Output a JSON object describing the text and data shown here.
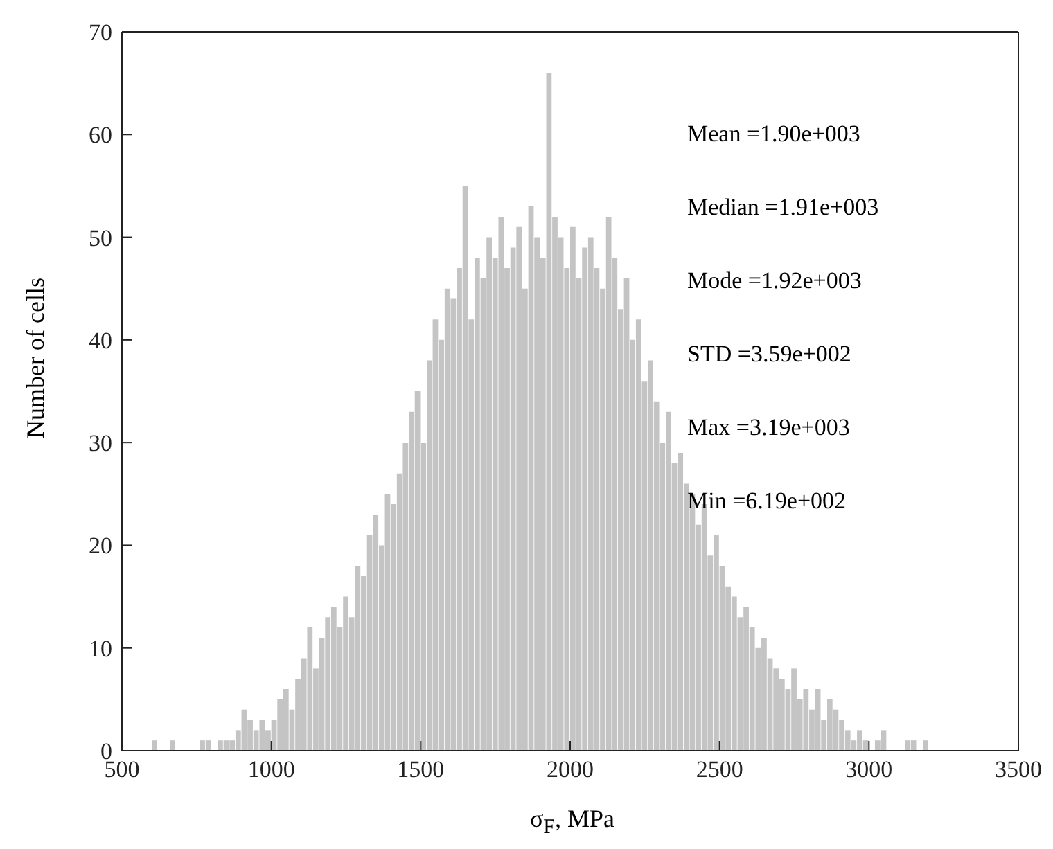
{
  "chart_data": {
    "type": "histogram",
    "xlabel": "σ$_{F}$, MPa",
    "ylabel": "Number of cells",
    "bins": [
      600,
      620,
      640,
      660,
      680,
      700,
      720,
      740,
      760,
      780,
      800,
      820,
      840,
      860,
      880,
      900,
      920,
      940,
      960,
      980,
      1000,
      1020,
      1040,
      1060,
      1080,
      1100,
      1120,
      1140,
      1160,
      1180,
      1200,
      1220,
      1240,
      1260,
      1280,
      1300,
      1320,
      1340,
      1360,
      1380,
      1400,
      1420,
      1440,
      1460,
      1480,
      1500,
      1520,
      1540,
      1560,
      1580,
      1600,
      1620,
      1640,
      1660,
      1680,
      1700,
      1720,
      1740,
      1760,
      1780,
      1800,
      1820,
      1840,
      1860,
      1880,
      1900,
      1920,
      1940,
      1960,
      1980,
      2000,
      2020,
      2040,
      2060,
      2080,
      2100,
      2120,
      2140,
      2160,
      2180,
      2200,
      2220,
      2240,
      2260,
      2280,
      2300,
      2320,
      2340,
      2360,
      2380,
      2400,
      2420,
      2440,
      2460,
      2480,
      2500,
      2520,
      2540,
      2560,
      2580,
      2600,
      2620,
      2640,
      2660,
      2680,
      2700,
      2720,
      2740,
      2760,
      2780,
      2800,
      2820,
      2840,
      2860,
      2880,
      2900,
      2920,
      2940,
      2960,
      2980,
      3000,
      3020,
      3040,
      3060,
      3080,
      3100,
      3120,
      3140,
      3160,
      3180,
      3200
    ],
    "values": [
      1,
      0,
      0,
      1,
      0,
      0,
      0,
      0,
      1,
      1,
      0,
      1,
      1,
      1,
      2,
      4,
      3,
      2,
      3,
      2,
      3,
      5,
      6,
      4,
      7,
      9,
      12,
      8,
      11,
      13,
      14,
      12,
      15,
      13,
      18,
      17,
      21,
      23,
      20,
      25,
      24,
      27,
      30,
      33,
      35,
      30,
      38,
      42,
      40,
      45,
      44,
      47,
      55,
      42,
      48,
      46,
      50,
      48,
      52,
      47,
      49,
      51,
      45,
      53,
      50,
      48,
      66,
      52,
      50,
      47,
      51,
      46,
      49,
      50,
      47,
      45,
      52,
      48,
      43,
      46,
      40,
      42,
      36,
      38,
      34,
      30,
      33,
      28,
      29,
      26,
      25,
      22,
      24,
      19,
      21,
      18,
      16,
      15,
      13,
      14,
      12,
      10,
      11,
      9,
      8,
      7,
      6,
      8,
      5,
      6,
      4,
      6,
      3,
      5,
      4,
      3,
      2,
      1,
      2,
      1,
      0,
      1,
      2,
      0,
      0,
      0,
      1,
      1,
      0,
      1
    ],
    "color": "#c4c4c4",
    "xlim": [
      500,
      3500
    ],
    "xticks": [
      500,
      1000,
      1500,
      2000,
      2500,
      3000,
      3500
    ],
    "ylim": [
      0,
      70
    ],
    "yticks": [
      0,
      10,
      20,
      30,
      40,
      50,
      60,
      70
    ],
    "annotations": [
      "Mean =1.90e+003",
      "Median =1.91e+003",
      "Mode =1.92e+003",
      "STD =3.59e+002",
      "Max =3.19e+003",
      "Min =6.19e+002"
    ]
  }
}
